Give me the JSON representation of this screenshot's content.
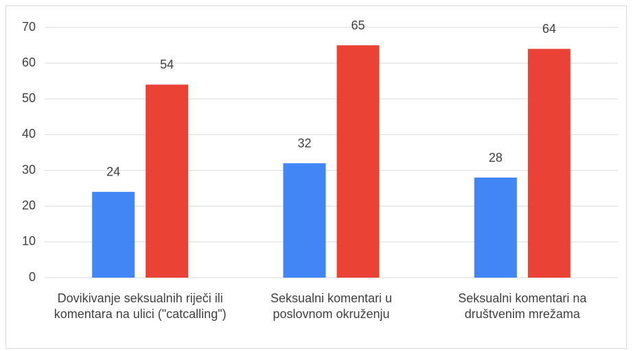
{
  "chart_data": {
    "type": "bar",
    "categories": [
      "Dovikivanje seksualnih riječi ili komentara na ulici (\"catcalling\")",
      "Seksualni komentari u poslovnom okruženju",
      "Seksualni komentari na društvenim mrežama"
    ],
    "series": [
      {
        "color": "#4285f4",
        "values": [
          24,
          32,
          28
        ]
      },
      {
        "color": "#ea4335",
        "values": [
          54,
          65,
          64
        ]
      }
    ],
    "ylim": [
      0,
      70
    ],
    "yticks": [
      0,
      10,
      20,
      30,
      40,
      50,
      60,
      70
    ],
    "grid": true
  }
}
